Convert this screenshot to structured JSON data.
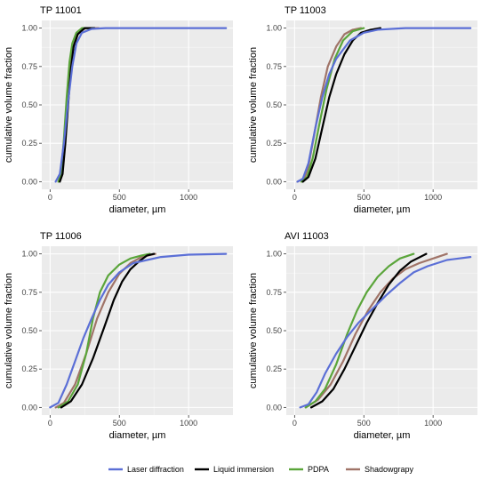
{
  "chart_data": {
    "type": "line",
    "ylabel": "cumulative volume fraction",
    "xlabel": "diameter, µm",
    "xlim": [
      -60,
      1320
    ],
    "ylim": [
      -0.05,
      1.05
    ],
    "x_ticks": [
      0,
      500,
      1000
    ],
    "y_ticks": [
      "0.00",
      "0.25",
      "0.50",
      "0.75",
      "1.00"
    ],
    "legend": {
      "position": "bottom",
      "items": [
        {
          "name": "Laser diffraction",
          "color": "#5b6fd6"
        },
        {
          "name": "Liquid immersion",
          "color": "#000000"
        },
        {
          "name": "PDPA",
          "color": "#5aa53a"
        },
        {
          "name": "Shadowgrapy",
          "color": "#a07468"
        }
      ]
    },
    "panels": [
      {
        "title": "TP 11001",
        "series": [
          {
            "name": "Shadowgrapy",
            "color": "#a07468",
            "points": [
              [
                60,
                0
              ],
              [
                80,
                0.05
              ],
              [
                100,
                0.25
              ],
              [
                120,
                0.5
              ],
              [
                140,
                0.7
              ],
              [
                160,
                0.85
              ],
              [
                180,
                0.93
              ],
              [
                210,
                0.98
              ],
              [
                260,
                1.0
              ],
              [
                350,
                1.0
              ]
            ]
          },
          {
            "name": "PDPA",
            "color": "#5aa53a",
            "points": [
              [
                60,
                0
              ],
              [
                80,
                0.06
              ],
              [
                100,
                0.28
              ],
              [
                120,
                0.55
              ],
              [
                140,
                0.78
              ],
              [
                160,
                0.9
              ],
              [
                190,
                0.97
              ],
              [
                230,
                1.0
              ],
              [
                300,
                1.0
              ]
            ]
          },
          {
            "name": "Liquid immersion",
            "color": "#000000",
            "points": [
              [
                70,
                0
              ],
              [
                90,
                0.05
              ],
              [
                110,
                0.25
              ],
              [
                130,
                0.5
              ],
              [
                150,
                0.73
              ],
              [
                170,
                0.88
              ],
              [
                200,
                0.96
              ],
              [
                250,
                1.0
              ],
              [
                320,
                1.0
              ]
            ]
          },
          {
            "name": "Laser diffraction",
            "color": "#5b6fd6",
            "points": [
              [
                40,
                0
              ],
              [
                70,
                0.05
              ],
              [
                100,
                0.25
              ],
              [
                130,
                0.52
              ],
              [
                160,
                0.75
              ],
              [
                190,
                0.9
              ],
              [
                230,
                0.97
              ],
              [
                300,
                0.995
              ],
              [
                400,
                1.0
              ],
              [
                1270,
                1.0
              ]
            ]
          }
        ]
      },
      {
        "title": "TP 11003",
        "series": [
          {
            "name": "Shadowgrapy",
            "color": "#a07468",
            "points": [
              [
                20,
                0
              ],
              [
                70,
                0.02
              ],
              [
                100,
                0.1
              ],
              [
                140,
                0.3
              ],
              [
                190,
                0.55
              ],
              [
                240,
                0.75
              ],
              [
                300,
                0.88
              ],
              [
                360,
                0.96
              ],
              [
                420,
                0.99
              ],
              [
                480,
                1.0
              ]
            ]
          },
          {
            "name": "PDPA",
            "color": "#5aa53a",
            "points": [
              [
                50,
                0
              ],
              [
                90,
                0.03
              ],
              [
                130,
                0.15
              ],
              [
                180,
                0.38
              ],
              [
                230,
                0.6
              ],
              [
                290,
                0.8
              ],
              [
                350,
                0.92
              ],
              [
                420,
                0.98
              ],
              [
                500,
                1.0
              ]
            ]
          },
          {
            "name": "Liquid immersion",
            "color": "#000000",
            "points": [
              [
                60,
                0
              ],
              [
                100,
                0.03
              ],
              [
                150,
                0.15
              ],
              [
                200,
                0.35
              ],
              [
                250,
                0.55
              ],
              [
                300,
                0.7
              ],
              [
                360,
                0.83
              ],
              [
                420,
                0.92
              ],
              [
                480,
                0.97
              ],
              [
                550,
                0.99
              ],
              [
                620,
                1.0
              ]
            ]
          },
          {
            "name": "Laser diffraction",
            "color": "#5b6fd6",
            "points": [
              [
                20,
                0
              ],
              [
                60,
                0.02
              ],
              [
                100,
                0.12
              ],
              [
                150,
                0.35
              ],
              [
                200,
                0.55
              ],
              [
                250,
                0.7
              ],
              [
                300,
                0.8
              ],
              [
                400,
                0.92
              ],
              [
                500,
                0.97
              ],
              [
                600,
                0.99
              ],
              [
                800,
                1.0
              ],
              [
                1270,
                1.0
              ]
            ]
          }
        ]
      },
      {
        "title": "TP 11006",
        "series": [
          {
            "name": "Shadowgrapy",
            "color": "#a07468",
            "points": [
              [
                40,
                0
              ],
              [
                100,
                0.03
              ],
              [
                180,
                0.15
              ],
              [
                260,
                0.35
              ],
              [
                340,
                0.58
              ],
              [
                420,
                0.75
              ],
              [
                500,
                0.87
              ],
              [
                580,
                0.94
              ],
              [
                660,
                0.98
              ],
              [
                760,
                1.0
              ]
            ]
          },
          {
            "name": "PDPA",
            "color": "#5aa53a",
            "points": [
              [
                60,
                0
              ],
              [
                130,
                0.04
              ],
              [
                200,
                0.15
              ],
              [
                260,
                0.35
              ],
              [
                310,
                0.58
              ],
              [
                360,
                0.75
              ],
              [
                420,
                0.86
              ],
              [
                500,
                0.93
              ],
              [
                580,
                0.97
              ],
              [
                660,
                0.99
              ],
              [
                720,
                1.0
              ]
            ]
          },
          {
            "name": "Liquid immersion",
            "color": "#000000",
            "points": [
              [
                80,
                0
              ],
              [
                150,
                0.04
              ],
              [
                230,
                0.15
              ],
              [
                310,
                0.32
              ],
              [
                390,
                0.52
              ],
              [
                460,
                0.7
              ],
              [
                520,
                0.82
              ],
              [
                580,
                0.9
              ],
              [
                640,
                0.95
              ],
              [
                700,
                0.99
              ],
              [
                750,
                1.0
              ]
            ]
          },
          {
            "name": "Laser diffraction",
            "color": "#5b6fd6",
            "points": [
              [
                0,
                0
              ],
              [
                60,
                0.03
              ],
              [
                120,
                0.15
              ],
              [
                180,
                0.3
              ],
              [
                240,
                0.45
              ],
              [
                300,
                0.58
              ],
              [
                360,
                0.7
              ],
              [
                420,
                0.8
              ],
              [
                500,
                0.88
              ],
              [
                600,
                0.94
              ],
              [
                800,
                0.98
              ],
              [
                1000,
                0.995
              ],
              [
                1270,
                1.0
              ]
            ]
          }
        ]
      },
      {
        "title": "AVI 11003",
        "series": [
          {
            "name": "Shadowgrapy",
            "color": "#a07468",
            "points": [
              [
                80,
                0
              ],
              [
                170,
                0.05
              ],
              [
                260,
                0.15
              ],
              [
                350,
                0.3
              ],
              [
                440,
                0.48
              ],
              [
                530,
                0.63
              ],
              [
                620,
                0.75
              ],
              [
                710,
                0.84
              ],
              [
                800,
                0.9
              ],
              [
                900,
                0.94
              ],
              [
                1000,
                0.97
              ],
              [
                1100,
                1.0
              ]
            ]
          },
          {
            "name": "PDPA",
            "color": "#5aa53a",
            "points": [
              [
                80,
                0
              ],
              [
                150,
                0.04
              ],
              [
                220,
                0.12
              ],
              [
                300,
                0.28
              ],
              [
                380,
                0.48
              ],
              [
                450,
                0.63
              ],
              [
                520,
                0.75
              ],
              [
                600,
                0.85
              ],
              [
                680,
                0.92
              ],
              [
                760,
                0.97
              ],
              [
                860,
                1.0
              ]
            ]
          },
          {
            "name": "Liquid immersion",
            "color": "#000000",
            "points": [
              [
                120,
                0
              ],
              [
                200,
                0.04
              ],
              [
                280,
                0.12
              ],
              [
                360,
                0.25
              ],
              [
                440,
                0.4
              ],
              [
                520,
                0.55
              ],
              [
                600,
                0.68
              ],
              [
                680,
                0.8
              ],
              [
                760,
                0.89
              ],
              [
                840,
                0.95
              ],
              [
                950,
                1.0
              ]
            ]
          },
          {
            "name": "Laser diffraction",
            "color": "#5b6fd6",
            "points": [
              [
                40,
                0
              ],
              [
                100,
                0.02
              ],
              [
                160,
                0.1
              ],
              [
                220,
                0.22
              ],
              [
                300,
                0.35
              ],
              [
                380,
                0.46
              ],
              [
                460,
                0.55
              ],
              [
                560,
                0.64
              ],
              [
                660,
                0.73
              ],
              [
                760,
                0.81
              ],
              [
                860,
                0.88
              ],
              [
                960,
                0.92
              ],
              [
                1100,
                0.96
              ],
              [
                1270,
                0.98
              ]
            ]
          }
        ]
      }
    ]
  }
}
